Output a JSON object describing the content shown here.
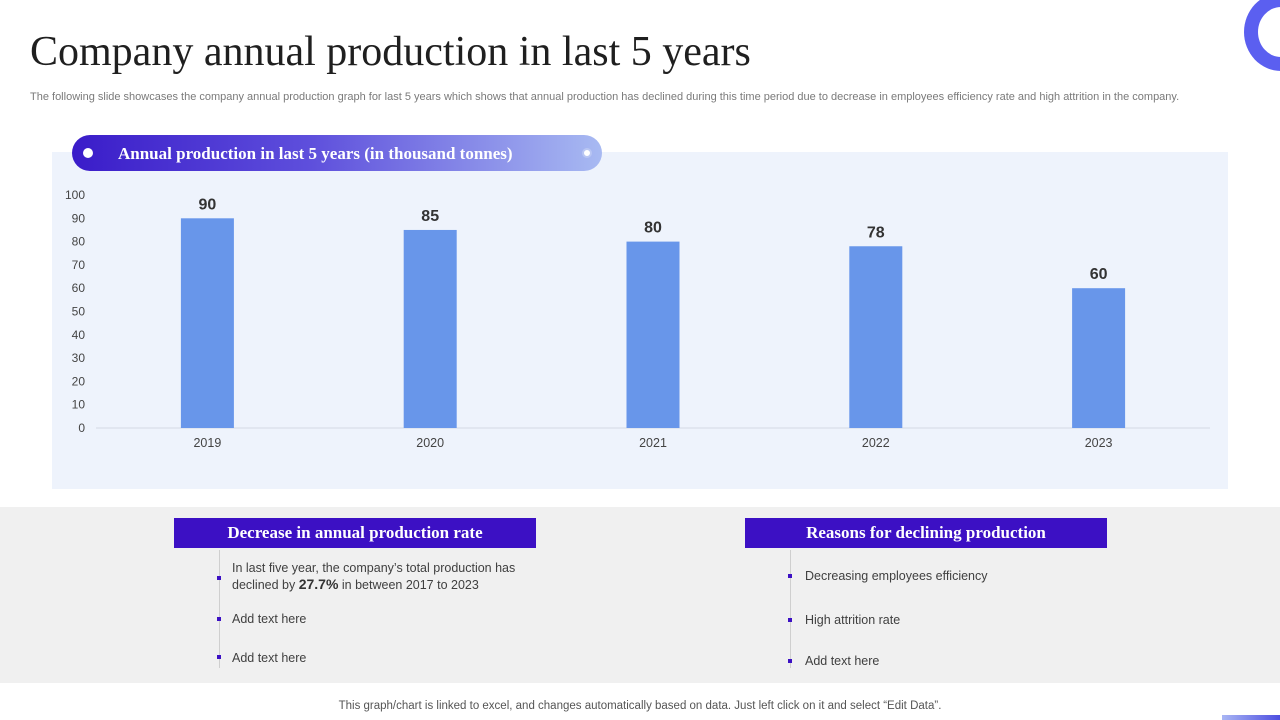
{
  "slide": {
    "title": "Company annual production in last 5 years",
    "subtitle": "The following slide showcases the company annual production graph for last 5 years which shows that annual production has declined during this time period due to decrease in employees efficiency rate and high attrition in the company.",
    "footnote": "This graph/chart is linked to excel,  and changes automatically based on data. Just left click on it and select “Edit Data”."
  },
  "chart_header": "Annual production in last 5 years (in thousand  tonnes)",
  "chart_data": {
    "type": "bar",
    "title": "Annual production in last 5 years (in thousand  tonnes)",
    "categories": [
      "2019",
      "2020",
      "2021",
      "2022",
      "2023"
    ],
    "values": [
      90,
      85,
      80,
      78,
      60
    ],
    "ylim": [
      0,
      100
    ],
    "yticks": [
      0,
      10,
      20,
      30,
      40,
      50,
      60,
      70,
      80,
      90,
      100
    ],
    "xlabel": "",
    "ylabel": "",
    "grid": false,
    "data_labels": true,
    "bar_color": "#6896ea"
  },
  "left_box": {
    "header": "Decrease in annual production rate",
    "item1_line1": "In last five  year, the company’s total production  has",
    "item1_pre": "declined  by ",
    "item1_value": "27.7%",
    "item1_post": " in between  2017 to 2023",
    "items": [
      "Add text here",
      "Add text here"
    ]
  },
  "right_box": {
    "header": "Reasons for declining production",
    "items": [
      "Decreasing  employees  efficiency",
      "High  attrition rate",
      "Add text here"
    ]
  },
  "colors": {
    "accent": "#3c10c4",
    "bar": "#6896ea",
    "panel": "#eef3fc"
  }
}
